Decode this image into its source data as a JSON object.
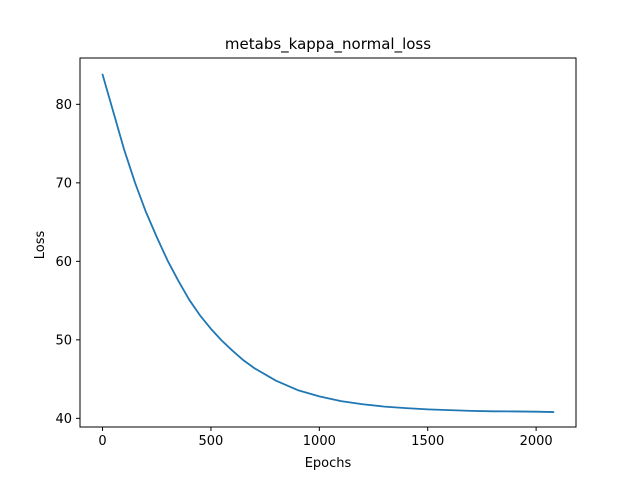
{
  "chart_data": {
    "type": "line",
    "title": "metabs_kappa_normal_loss",
    "xlabel": "Epochs",
    "ylabel": "Loss",
    "xlim": [
      -104,
      2184
    ],
    "ylim": [
      38.9,
      85.9
    ],
    "xticks": [
      0,
      500,
      1000,
      1500,
      2000
    ],
    "xtick_labels": [
      "0",
      "500",
      "1000",
      "1500",
      "2000"
    ],
    "yticks": [
      40,
      50,
      60,
      70,
      80
    ],
    "ytick_labels": [
      "40",
      "50",
      "60",
      "70",
      "80"
    ],
    "grid": false,
    "legend": "none",
    "series": [
      {
        "color": "#1f77b4",
        "x": [
          0,
          50,
          100,
          150,
          200,
          250,
          300,
          350,
          400,
          450,
          500,
          550,
          600,
          650,
          700,
          800,
          900,
          1000,
          1100,
          1200,
          1300,
          1400,
          1500,
          1600,
          1700,
          1800,
          1900,
          2000,
          2080
        ],
        "y": [
          83.8,
          79.0,
          74.2,
          70.0,
          66.3,
          63.1,
          60.1,
          57.5,
          55.1,
          53.1,
          51.4,
          49.9,
          48.6,
          47.4,
          46.4,
          44.8,
          43.6,
          42.8,
          42.2,
          41.8,
          41.5,
          41.3,
          41.15,
          41.05,
          40.95,
          40.9,
          40.88,
          40.85,
          40.8
        ]
      }
    ]
  }
}
